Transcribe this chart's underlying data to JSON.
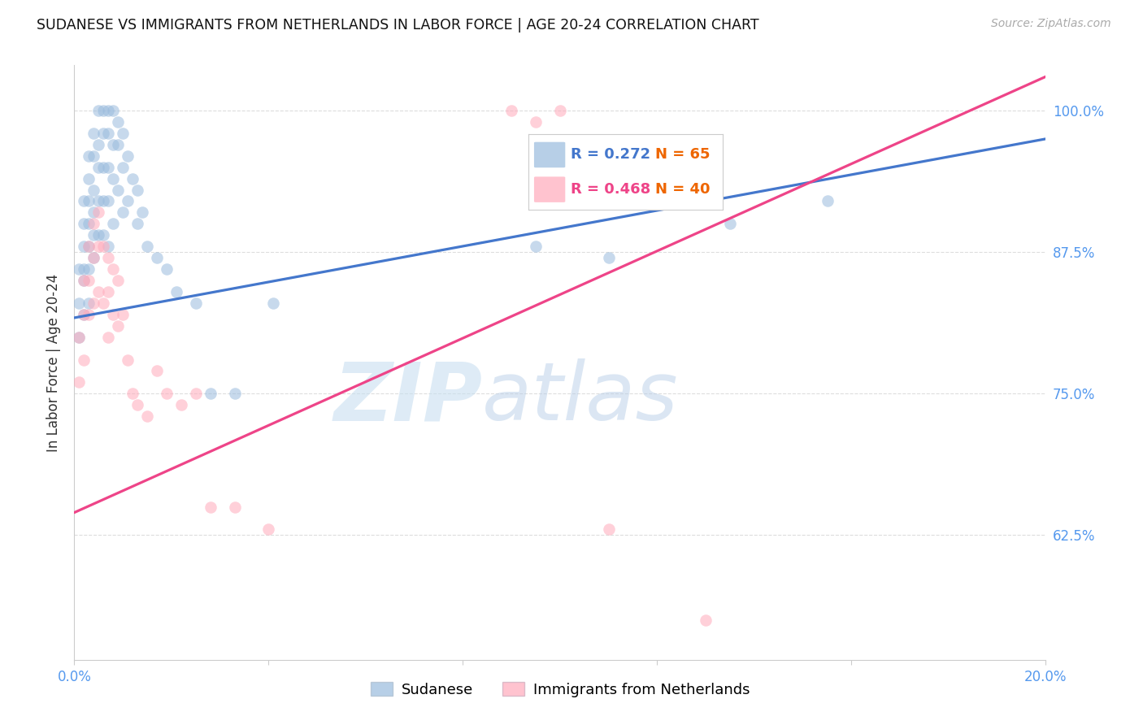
{
  "title": "SUDANESE VS IMMIGRANTS FROM NETHERLANDS IN LABOR FORCE | AGE 20-24 CORRELATION CHART",
  "source": "Source: ZipAtlas.com",
  "ylabel": "In Labor Force | Age 20-24",
  "xmin": 0.0,
  "xmax": 0.2,
  "ymin": 0.515,
  "ymax": 1.04,
  "legend_label1": "Sudanese",
  "legend_label2": "Immigrants from Netherlands",
  "r1_text": "R = 0.272",
  "n1_text": "N = 65",
  "r2_text": "R = 0.468",
  "n2_text": "N = 40",
  "color1": "#99BBDD",
  "color2": "#FFAABB",
  "line_color1": "#4477CC",
  "line_color2": "#EE4488",
  "watermark_zip": "ZIP",
  "watermark_atlas": "atlas",
  "yticks": [
    0.625,
    0.75,
    0.875,
    1.0
  ],
  "ytick_labels": [
    "62.5%",
    "75.0%",
    "87.5%",
    "100.0%"
  ],
  "grid_color": "#dddddd",
  "blue_line_x0": 0.0,
  "blue_line_y0": 0.817,
  "blue_line_x1": 0.2,
  "blue_line_y1": 0.975,
  "pink_line_x0": 0.0,
  "pink_line_y0": 0.645,
  "pink_line_x1": 0.2,
  "pink_line_y1": 1.03,
  "sudanese_x": [
    0.001,
    0.001,
    0.001,
    0.002,
    0.002,
    0.002,
    0.002,
    0.002,
    0.002,
    0.003,
    0.003,
    0.003,
    0.003,
    0.003,
    0.003,
    0.003,
    0.004,
    0.004,
    0.004,
    0.004,
    0.004,
    0.004,
    0.005,
    0.005,
    0.005,
    0.005,
    0.005,
    0.006,
    0.006,
    0.006,
    0.006,
    0.006,
    0.007,
    0.007,
    0.007,
    0.007,
    0.007,
    0.008,
    0.008,
    0.008,
    0.008,
    0.009,
    0.009,
    0.009,
    0.01,
    0.01,
    0.01,
    0.011,
    0.011,
    0.012,
    0.013,
    0.013,
    0.014,
    0.015,
    0.017,
    0.019,
    0.021,
    0.025,
    0.028,
    0.033,
    0.041,
    0.095,
    0.11,
    0.135,
    0.155
  ],
  "sudanese_y": [
    0.86,
    0.83,
    0.8,
    0.92,
    0.9,
    0.88,
    0.86,
    0.85,
    0.82,
    0.96,
    0.94,
    0.92,
    0.9,
    0.88,
    0.86,
    0.83,
    0.98,
    0.96,
    0.93,
    0.91,
    0.89,
    0.87,
    1.0,
    0.97,
    0.95,
    0.92,
    0.89,
    1.0,
    0.98,
    0.95,
    0.92,
    0.89,
    1.0,
    0.98,
    0.95,
    0.92,
    0.88,
    1.0,
    0.97,
    0.94,
    0.9,
    0.99,
    0.97,
    0.93,
    0.98,
    0.95,
    0.91,
    0.96,
    0.92,
    0.94,
    0.93,
    0.9,
    0.91,
    0.88,
    0.87,
    0.86,
    0.84,
    0.83,
    0.75,
    0.75,
    0.83,
    0.88,
    0.87,
    0.9,
    0.92
  ],
  "netherlands_x": [
    0.001,
    0.001,
    0.002,
    0.002,
    0.002,
    0.003,
    0.003,
    0.003,
    0.004,
    0.004,
    0.004,
    0.005,
    0.005,
    0.005,
    0.006,
    0.006,
    0.007,
    0.007,
    0.007,
    0.008,
    0.008,
    0.009,
    0.009,
    0.01,
    0.011,
    0.012,
    0.013,
    0.015,
    0.017,
    0.019,
    0.022,
    0.025,
    0.028,
    0.033,
    0.04,
    0.09,
    0.095,
    0.1,
    0.11,
    0.13
  ],
  "netherlands_y": [
    0.8,
    0.76,
    0.85,
    0.82,
    0.78,
    0.88,
    0.85,
    0.82,
    0.9,
    0.87,
    0.83,
    0.91,
    0.88,
    0.84,
    0.88,
    0.83,
    0.87,
    0.84,
    0.8,
    0.86,
    0.82,
    0.85,
    0.81,
    0.82,
    0.78,
    0.75,
    0.74,
    0.73,
    0.77,
    0.75,
    0.74,
    0.75,
    0.65,
    0.65,
    0.63,
    1.0,
    0.99,
    1.0,
    0.63,
    0.55
  ]
}
